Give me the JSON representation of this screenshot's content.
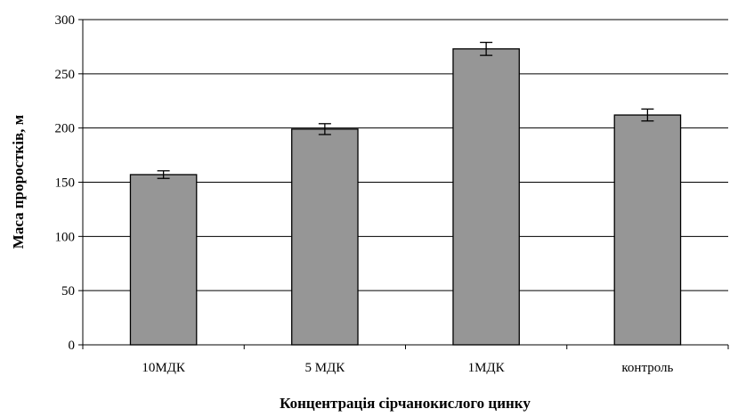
{
  "chart_data": {
    "type": "bar",
    "categories": [
      "10МДК",
      "5 МДК",
      "1МДК",
      "контроль"
    ],
    "values": [
      157,
      199,
      273,
      212
    ],
    "errors": [
      3.5,
      5,
      6,
      5.5
    ],
    "xlabel": "Концентрація сірчанокислого цинку",
    "ylabel": "Маса проростків, м",
    "ylim": [
      0,
      300
    ],
    "yticks": [
      0,
      50,
      100,
      150,
      200,
      250,
      300
    ],
    "grid": true,
    "bar_color": "#969696"
  }
}
